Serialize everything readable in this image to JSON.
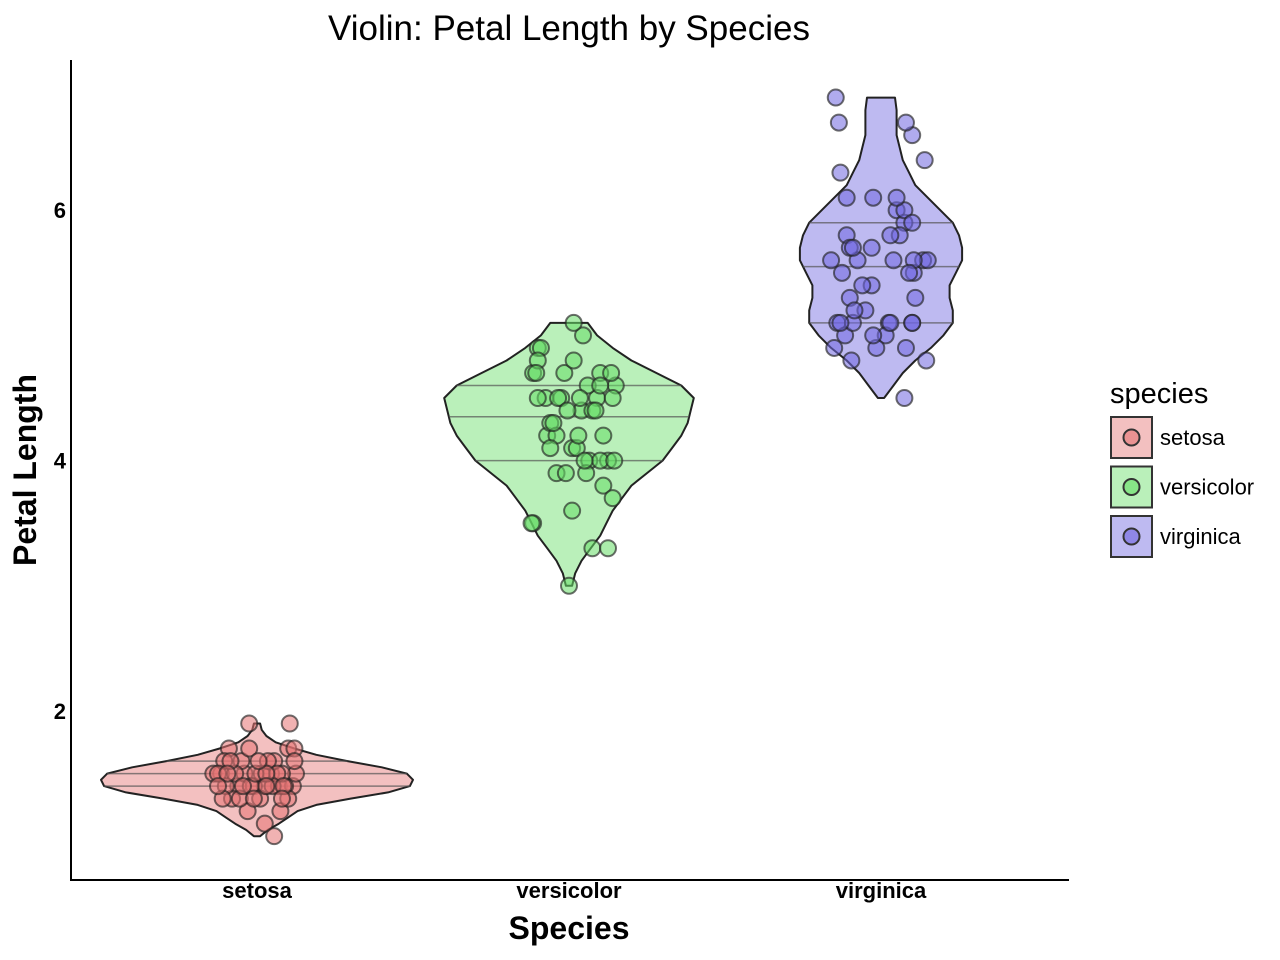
{
  "chart_data": {
    "type": "violin",
    "title": "Violin: Petal Length by Species",
    "xlabel": "Species",
    "ylabel": "Petal Length",
    "ylim": [
      0.65,
      7.2
    ],
    "yticks": [
      2,
      4,
      6
    ],
    "categories": [
      "setosa",
      "versicolor",
      "virginica"
    ],
    "legend": {
      "title": "species",
      "placement": "right",
      "entries": [
        "setosa",
        "versicolor",
        "virginica"
      ]
    },
    "colors": {
      "setosa": "#e57373",
      "versicolor": "#66dd66",
      "virginica": "#6f66e0",
      "outline": "#222222"
    },
    "series": [
      {
        "name": "setosa",
        "min": 1.0,
        "max": 1.9,
        "quartiles": [
          1.4,
          1.5,
          1.6
        ],
        "density": [
          [
            1.0,
            0.01
          ],
          [
            1.05,
            0.035
          ],
          [
            1.1,
            0.07
          ],
          [
            1.15,
            0.1
          ],
          [
            1.2,
            0.13
          ],
          [
            1.25,
            0.19
          ],
          [
            1.3,
            0.3
          ],
          [
            1.35,
            0.42
          ],
          [
            1.4,
            0.49
          ],
          [
            1.45,
            0.5
          ],
          [
            1.5,
            0.48
          ],
          [
            1.55,
            0.4
          ],
          [
            1.6,
            0.29
          ],
          [
            1.65,
            0.19
          ],
          [
            1.7,
            0.12
          ],
          [
            1.75,
            0.06
          ],
          [
            1.8,
            0.03
          ],
          [
            1.85,
            0.015
          ],
          [
            1.9,
            0.01
          ]
        ],
        "points": [
          [
            1.4,
            -0.12
          ],
          [
            1.4,
            0.05
          ],
          [
            1.3,
            -0.16
          ],
          [
            1.5,
            0.09
          ],
          [
            1.4,
            -0.02
          ],
          [
            1.7,
            0.2
          ],
          [
            1.4,
            0.14
          ],
          [
            1.5,
            -0.08
          ],
          [
            1.4,
            0.23
          ],
          [
            1.5,
            -0.23
          ],
          [
            1.5,
            0.03
          ],
          [
            1.6,
            -0.1
          ],
          [
            1.4,
            0.18
          ],
          [
            1.1,
            0.05
          ],
          [
            1.2,
            -0.06
          ],
          [
            1.5,
            0.25
          ],
          [
            1.3,
            0.02
          ],
          [
            1.4,
            -0.2
          ],
          [
            1.7,
            -0.05
          ],
          [
            1.5,
            0.16
          ],
          [
            1.7,
            -0.18
          ],
          [
            1.5,
            -0.14
          ],
          [
            1.0,
            0.11
          ],
          [
            1.7,
            0.24
          ],
          [
            1.9,
            0.21
          ],
          [
            1.6,
            0.11
          ],
          [
            1.6,
            0.24
          ],
          [
            1.5,
            -0.28
          ],
          [
            1.4,
            -0.04
          ],
          [
            1.6,
            0.07
          ],
          [
            1.6,
            -0.21
          ],
          [
            1.5,
            0.13
          ],
          [
            1.5,
            -0.25
          ],
          [
            1.4,
            0.1
          ],
          [
            1.5,
            -0.01
          ],
          [
            1.2,
            0.15
          ],
          [
            1.3,
            0.2
          ],
          [
            1.4,
            0.17
          ],
          [
            1.3,
            -0.22
          ],
          [
            1.5,
            0.06
          ],
          [
            1.3,
            -0.11
          ],
          [
            1.3,
            0.16
          ],
          [
            1.3,
            -0.02
          ],
          [
            1.6,
            -0.17
          ],
          [
            1.9,
            -0.05
          ],
          [
            1.4,
            -0.09
          ],
          [
            1.6,
            0.01
          ],
          [
            1.4,
            0.06
          ],
          [
            1.5,
            -0.19
          ],
          [
            1.4,
            -0.25
          ]
        ]
      },
      {
        "name": "versicolor",
        "min": 3.0,
        "max": 5.1,
        "quartiles": [
          4.0,
          4.35,
          4.6
        ],
        "density": [
          [
            3.0,
            0.01
          ],
          [
            3.1,
            0.02
          ],
          [
            3.2,
            0.04
          ],
          [
            3.3,
            0.07
          ],
          [
            3.4,
            0.1
          ],
          [
            3.5,
            0.12
          ],
          [
            3.6,
            0.14
          ],
          [
            3.7,
            0.17
          ],
          [
            3.8,
            0.2
          ],
          [
            3.9,
            0.25
          ],
          [
            4.0,
            0.3
          ],
          [
            4.1,
            0.33
          ],
          [
            4.2,
            0.36
          ],
          [
            4.3,
            0.38
          ],
          [
            4.4,
            0.39
          ],
          [
            4.5,
            0.4
          ],
          [
            4.6,
            0.36
          ],
          [
            4.7,
            0.28
          ],
          [
            4.8,
            0.2
          ],
          [
            4.9,
            0.14
          ],
          [
            5.0,
            0.09
          ],
          [
            5.1,
            0.06
          ]
        ],
        "points": [
          [
            4.7,
            -0.23
          ],
          [
            4.5,
            0.18
          ],
          [
            4.9,
            -0.2
          ],
          [
            4.0,
            0.25
          ],
          [
            4.6,
            0.12
          ],
          [
            4.5,
            -0.15
          ],
          [
            4.7,
            -0.03
          ],
          [
            3.3,
            0.15
          ],
          [
            4.6,
            0.3
          ],
          [
            3.9,
            -0.08
          ],
          [
            3.5,
            -0.23
          ],
          [
            4.2,
            -0.14
          ],
          [
            4.0,
            0.13
          ],
          [
            4.7,
            0.2
          ],
          [
            3.6,
            0.02
          ],
          [
            4.4,
            0.08
          ],
          [
            4.5,
            -0.05
          ],
          [
            4.1,
            0.02
          ],
          [
            4.5,
            -0.2
          ],
          [
            3.9,
            0.11
          ],
          [
            4.8,
            0.03
          ],
          [
            4.0,
            0.2
          ],
          [
            4.9,
            -0.18
          ],
          [
            4.7,
            0.27
          ],
          [
            4.3,
            -0.12
          ],
          [
            4.4,
            0.15
          ],
          [
            4.8,
            -0.2
          ],
          [
            5.0,
            0.09
          ],
          [
            4.5,
            0.28
          ],
          [
            3.5,
            -0.24
          ],
          [
            3.8,
            0.22
          ],
          [
            3.7,
            0.28
          ],
          [
            3.9,
            -0.02
          ],
          [
            5.1,
            0.03
          ],
          [
            4.5,
            -0.07
          ],
          [
            4.5,
            0.07
          ],
          [
            4.7,
            -0.21
          ],
          [
            4.4,
            0.17
          ],
          [
            4.1,
            0.05
          ],
          [
            4.0,
            0.29
          ],
          [
            4.4,
            -0.01
          ],
          [
            4.6,
            0.2
          ],
          [
            4.0,
            0.1
          ],
          [
            3.3,
            0.25
          ],
          [
            4.2,
            0.22
          ],
          [
            4.2,
            -0.08
          ],
          [
            4.2,
            0.06
          ],
          [
            4.3,
            -0.1
          ],
          [
            3.0,
            0.0
          ],
          [
            4.1,
            -0.12
          ]
        ]
      },
      {
        "name": "virginica",
        "min": 4.5,
        "max": 6.9,
        "quartiles": [
          5.1,
          5.55,
          5.9
        ],
        "density": [
          [
            4.5,
            0.01
          ],
          [
            4.6,
            0.04
          ],
          [
            4.7,
            0.07
          ],
          [
            4.8,
            0.11
          ],
          [
            4.9,
            0.16
          ],
          [
            5.0,
            0.2
          ],
          [
            5.1,
            0.23
          ],
          [
            5.2,
            0.23
          ],
          [
            5.3,
            0.22
          ],
          [
            5.4,
            0.22
          ],
          [
            5.5,
            0.24
          ],
          [
            5.6,
            0.26
          ],
          [
            5.7,
            0.26
          ],
          [
            5.8,
            0.25
          ],
          [
            5.9,
            0.23
          ],
          [
            6.0,
            0.19
          ],
          [
            6.1,
            0.15
          ],
          [
            6.2,
            0.11
          ],
          [
            6.3,
            0.09
          ],
          [
            6.4,
            0.07
          ],
          [
            6.5,
            0.06
          ],
          [
            6.6,
            0.05
          ],
          [
            6.7,
            0.05
          ],
          [
            6.8,
            0.05
          ],
          [
            6.9,
            0.045
          ]
        ],
        "points": [
          [
            6.0,
            0.1
          ],
          [
            5.1,
            -0.28
          ],
          [
            5.9,
            0.15
          ],
          [
            5.6,
            -0.15
          ],
          [
            5.8,
            0.12
          ],
          [
            6.6,
            0.2
          ],
          [
            4.5,
            0.15
          ],
          [
            6.3,
            -0.26
          ],
          [
            5.8,
            -0.22
          ],
          [
            6.1,
            -0.22
          ],
          [
            5.1,
            0.2
          ],
          [
            5.3,
            0.22
          ],
          [
            5.5,
            0.21
          ],
          [
            5.0,
            -0.23
          ],
          [
            5.1,
            0.05
          ],
          [
            5.3,
            -0.2
          ],
          [
            5.5,
            -0.25
          ],
          [
            6.7,
            0.16
          ],
          [
            6.9,
            -0.29
          ],
          [
            5.0,
            0.03
          ],
          [
            5.7,
            -0.2
          ],
          [
            4.9,
            -0.3
          ],
          [
            6.7,
            -0.27
          ],
          [
            4.9,
            -0.03
          ],
          [
            5.7,
            -0.06
          ],
          [
            6.0,
            0.15
          ],
          [
            4.8,
            -0.19
          ],
          [
            4.9,
            0.16
          ],
          [
            5.6,
            0.27
          ],
          [
            5.8,
            0.06
          ],
          [
            6.1,
            -0.05
          ],
          [
            6.4,
            0.28
          ],
          [
            5.6,
            0.3
          ],
          [
            5.1,
            -0.18
          ],
          [
            5.6,
            -0.32
          ],
          [
            6.1,
            0.1
          ],
          [
            5.6,
            0.21
          ],
          [
            5.5,
            0.18
          ],
          [
            4.8,
            0.29
          ],
          [
            5.4,
            -0.06
          ],
          [
            5.6,
            0.08
          ],
          [
            5.1,
            0.2
          ],
          [
            5.1,
            0.06
          ],
          [
            5.9,
            0.2
          ],
          [
            5.7,
            -0.18
          ],
          [
            5.2,
            -0.1
          ],
          [
            5.0,
            -0.05
          ],
          [
            5.2,
            -0.17
          ],
          [
            5.4,
            -0.12
          ],
          [
            5.1,
            -0.26
          ]
        ]
      }
    ]
  }
}
